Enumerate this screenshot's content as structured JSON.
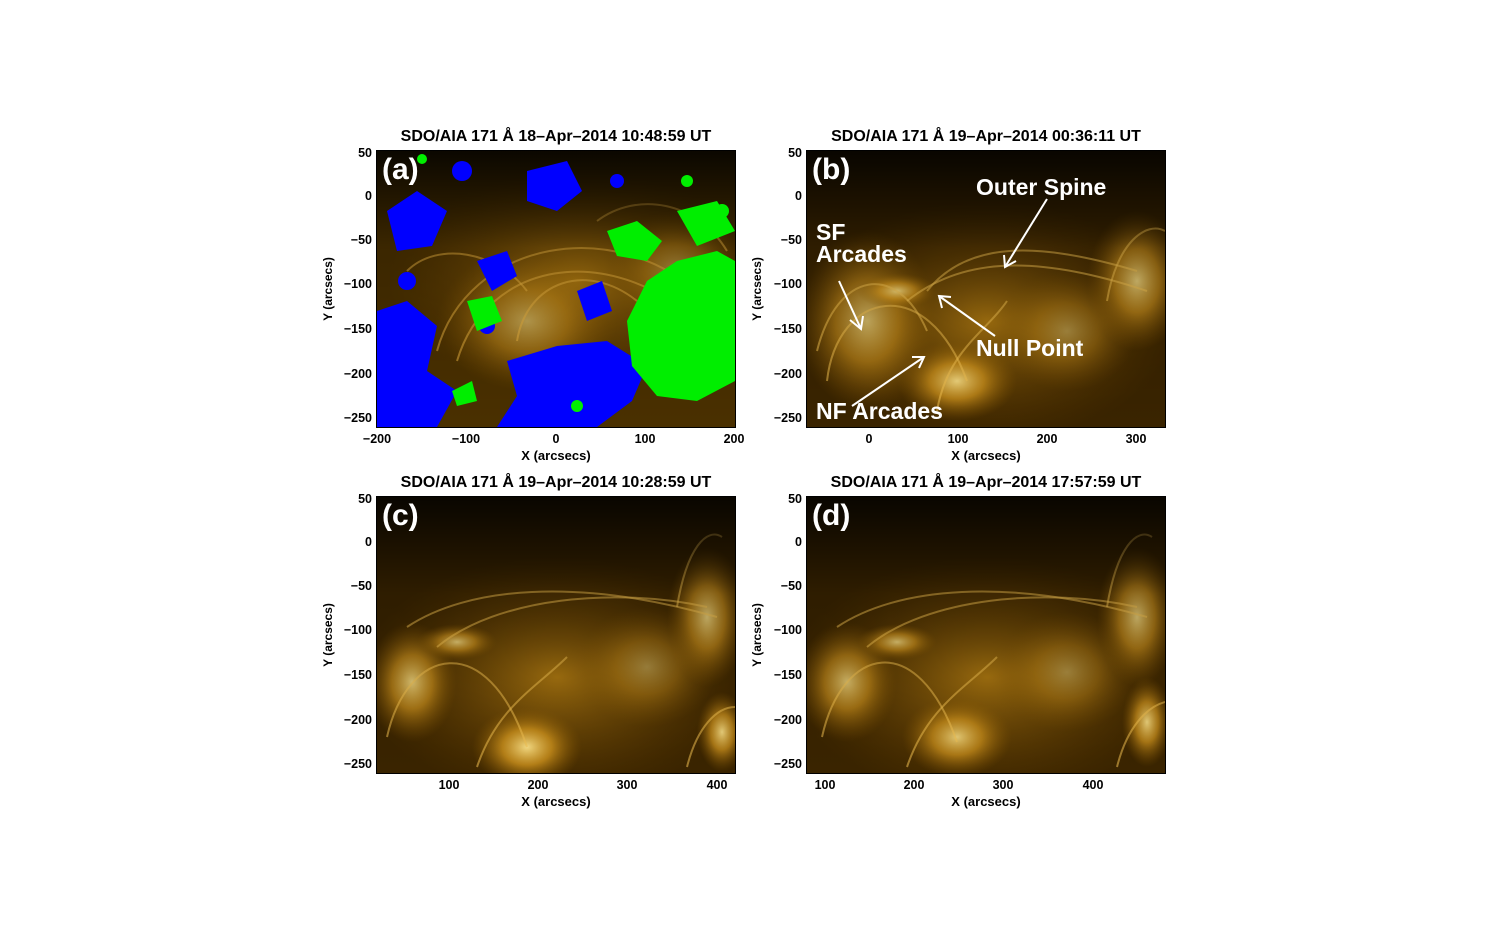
{
  "panels": [
    {
      "id": "a",
      "label": "(a)",
      "title": "SDO/AIA 171 Å 18–Apr–2014 10:48:59 UT",
      "xlabel": "X (arcsecs)",
      "ylabel": "Y (arcsecs)",
      "xticks": [
        "−200",
        "−100",
        "0",
        "100",
        "200"
      ],
      "yticks": [
        "50",
        "0",
        "−50",
        "−100",
        "−150",
        "−200",
        "−250"
      ],
      "overlay": {
        "positive_color": "#00ff00",
        "negative_color": "#0000ff"
      }
    },
    {
      "id": "b",
      "label": "(b)",
      "title": "SDO/AIA 171 Å 19–Apr–2014 00:36:11 UT",
      "xlabel": "X (arcsecs)",
      "ylabel": "Y (arcsecs)",
      "xticks": [
        "0",
        "100",
        "200",
        "300"
      ],
      "yticks": [
        "50",
        "0",
        "−50",
        "−100",
        "−150",
        "−200",
        "−250"
      ],
      "annotations": {
        "outer_spine": "Outer Spine",
        "sf_arcades_1": "SF",
        "sf_arcades_2": "Arcades",
        "null_point": "Null Point",
        "nf_arcades": "NF Arcades"
      }
    },
    {
      "id": "c",
      "label": "(c)",
      "title": "SDO/AIA 171 Å 19–Apr–2014 10:28:59 UT",
      "xlabel": "X (arcsecs)",
      "ylabel": "Y (arcsecs)",
      "xticks": [
        "100",
        "200",
        "300",
        "400"
      ],
      "yticks": [
        "50",
        "0",
        "−50",
        "−100",
        "−150",
        "−200",
        "−250"
      ]
    },
    {
      "id": "d",
      "label": "(d)",
      "title": "SDO/AIA 171 Å 19–Apr–2014 17:57:59 UT",
      "xlabel": "X (arcsecs)",
      "ylabel": "Y (arcsecs)",
      "xticks": [
        "100",
        "200",
        "300",
        "400"
      ],
      "yticks": [
        "50",
        "0",
        "−50",
        "−100",
        "−150",
        "−200",
        "−250"
      ]
    }
  ],
  "colors": {
    "aia171_bright": "#ffd24a",
    "aia171_mid": "#b07a10",
    "aia171_dark": "#1a0f00"
  }
}
